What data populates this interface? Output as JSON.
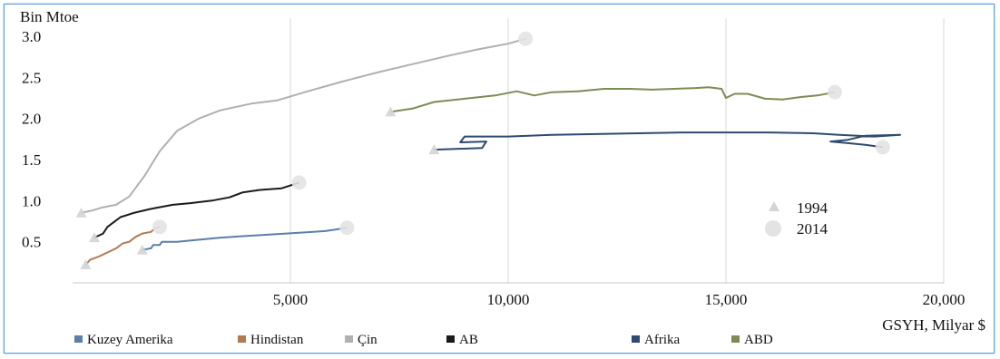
{
  "chart_data": {
    "type": "line",
    "xlabel": "GSYH, Milyar $",
    "ylabel": "Bin Mtoe",
    "xlim": [
      0,
      20000
    ],
    "ylim": [
      0,
      3.0
    ],
    "x_ticks": [
      "5,000",
      "10,000",
      "15,000",
      "20,000"
    ],
    "x_tick_values": [
      5000,
      10000,
      15000,
      20000
    ],
    "y_ticks": [
      "3.0",
      "2.5",
      "2.0",
      "1.5",
      "1.0",
      "0.5"
    ],
    "y_tick_values": [
      3.0,
      2.5,
      2.0,
      1.5,
      1.0,
      0.5
    ],
    "grid": "vertical",
    "legend_position": "bottom",
    "marker_legend": {
      "position": "right",
      "start_label": "1994",
      "end_label": "2014",
      "start_color": "#d4d4d4",
      "end_color": "#e3e3e3"
    },
    "series": [
      {
        "name": "Kuzey Amerika",
        "color": "#5a7fa8",
        "points": [
          [
            1600,
            0.4
          ],
          [
            1800,
            0.42
          ],
          [
            1850,
            0.46
          ],
          [
            2000,
            0.46
          ],
          [
            2050,
            0.5
          ],
          [
            2400,
            0.5
          ],
          [
            2800,
            0.52
          ],
          [
            3400,
            0.55
          ],
          [
            4000,
            0.57
          ],
          [
            4600,
            0.59
          ],
          [
            5200,
            0.61
          ],
          [
            5800,
            0.63
          ],
          [
            6300,
            0.67
          ]
        ]
      },
      {
        "name": "Hindistan",
        "color": "#b07a52",
        "points": [
          [
            300,
            0.22
          ],
          [
            400,
            0.28
          ],
          [
            600,
            0.32
          ],
          [
            800,
            0.37
          ],
          [
            1000,
            0.42
          ],
          [
            1150,
            0.48
          ],
          [
            1300,
            0.5
          ],
          [
            1450,
            0.56
          ],
          [
            1600,
            0.6
          ],
          [
            1800,
            0.62
          ],
          [
            1900,
            0.67
          ],
          [
            2000,
            0.68
          ]
        ]
      },
      {
        "name": "Çin",
        "color": "#b0b0b0",
        "points": [
          [
            200,
            0.85
          ],
          [
            450,
            0.88
          ],
          [
            700,
            0.92
          ],
          [
            1000,
            0.95
          ],
          [
            1300,
            1.05
          ],
          [
            1650,
            1.3
          ],
          [
            2000,
            1.6
          ],
          [
            2400,
            1.85
          ],
          [
            2900,
            2.0
          ],
          [
            3400,
            2.1
          ],
          [
            4100,
            2.18
          ],
          [
            4700,
            2.22
          ],
          [
            5400,
            2.33
          ],
          [
            6200,
            2.45
          ],
          [
            7000,
            2.56
          ],
          [
            7800,
            2.66
          ],
          [
            8600,
            2.76
          ],
          [
            9300,
            2.84
          ],
          [
            10000,
            2.91
          ],
          [
            10400,
            2.97
          ]
        ]
      },
      {
        "name": "AB",
        "color": "#1a1a1a",
        "points": [
          [
            500,
            0.55
          ],
          [
            700,
            0.6
          ],
          [
            800,
            0.68
          ],
          [
            900,
            0.72
          ],
          [
            1100,
            0.8
          ],
          [
            1400,
            0.85
          ],
          [
            1800,
            0.9
          ],
          [
            2300,
            0.95
          ],
          [
            2700,
            0.97
          ],
          [
            3200,
            1.0
          ],
          [
            3600,
            1.04
          ],
          [
            3900,
            1.1
          ],
          [
            4300,
            1.13
          ],
          [
            4800,
            1.15
          ],
          [
            5200,
            1.22
          ]
        ]
      },
      {
        "name": "Afrika",
        "color": "#2e4a6e",
        "points": [
          [
            8300,
            1.62
          ],
          [
            9400,
            1.64
          ],
          [
            9500,
            1.72
          ],
          [
            8900,
            1.71
          ],
          [
            9000,
            1.78
          ],
          [
            10000,
            1.78
          ],
          [
            11000,
            1.8
          ],
          [
            12000,
            1.81
          ],
          [
            13000,
            1.82
          ],
          [
            14000,
            1.83
          ],
          [
            15000,
            1.83
          ],
          [
            16000,
            1.83
          ],
          [
            17000,
            1.82
          ],
          [
            17600,
            1.8
          ],
          [
            18400,
            1.78
          ],
          [
            19000,
            1.8
          ],
          [
            18200,
            1.79
          ],
          [
            17800,
            1.74
          ],
          [
            17400,
            1.72
          ],
          [
            17800,
            1.7
          ],
          [
            18200,
            1.68
          ],
          [
            18600,
            1.65
          ]
        ]
      },
      {
        "name": "ABD",
        "color": "#7c8c56",
        "points": [
          [
            7300,
            2.08
          ],
          [
            7800,
            2.12
          ],
          [
            8300,
            2.2
          ],
          [
            9000,
            2.24
          ],
          [
            9700,
            2.28
          ],
          [
            10200,
            2.33
          ],
          [
            10600,
            2.28
          ],
          [
            11000,
            2.32
          ],
          [
            11600,
            2.33
          ],
          [
            12200,
            2.36
          ],
          [
            12800,
            2.36
          ],
          [
            13300,
            2.35
          ],
          [
            13800,
            2.36
          ],
          [
            14300,
            2.37
          ],
          [
            14600,
            2.38
          ],
          [
            14900,
            2.36
          ],
          [
            15000,
            2.25
          ],
          [
            15200,
            2.3
          ],
          [
            15500,
            2.3
          ],
          [
            15900,
            2.24
          ],
          [
            16300,
            2.23
          ],
          [
            16700,
            2.26
          ],
          [
            17100,
            2.28
          ],
          [
            17500,
            2.32
          ]
        ]
      }
    ],
    "legend_items": [
      {
        "label": "Kuzey Amerika",
        "color": "#5a7fa8"
      },
      {
        "label": "Hindistan",
        "color": "#b07a52"
      },
      {
        "label": "Çin",
        "color": "#b0b0b0"
      },
      {
        "label": "AB",
        "color": "#1a1a1a"
      },
      {
        "label": "Afrika",
        "color": "#2e4a6e"
      },
      {
        "label": "ABD",
        "color": "#7c8c56"
      }
    ]
  }
}
